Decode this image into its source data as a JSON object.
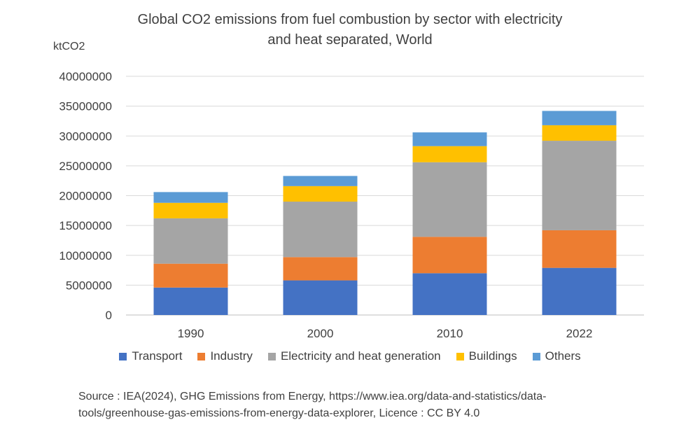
{
  "chart_data": {
    "type": "bar",
    "stacked": true,
    "title_lines": [
      "Global CO2 emissions from fuel combustion by sector with electricity",
      "and heat separated, World"
    ],
    "ylabel": "ktCO2",
    "xlabel": "",
    "ylim": [
      0,
      40000000
    ],
    "yticks": [
      "0",
      "5000000",
      "10000000",
      "15000000",
      "20000000",
      "25000000",
      "30000000",
      "35000000",
      "40000000"
    ],
    "grid": true,
    "legend_position": "bottom",
    "categories": [
      "1990",
      "2000",
      "2010",
      "2022"
    ],
    "series": [
      {
        "name": "Transport",
        "color": "#4472C4",
        "values": [
          4600000,
          5800000,
          7000000,
          7900000
        ]
      },
      {
        "name": "Industry",
        "color": "#ED7D31",
        "values": [
          4000000,
          3900000,
          6100000,
          6300000
        ]
      },
      {
        "name": "Electricity and heat generation",
        "color": "#A5A5A5",
        "values": [
          7600000,
          9300000,
          12500000,
          15000000
        ]
      },
      {
        "name": "Buildings",
        "color": "#FFC000",
        "values": [
          2600000,
          2600000,
          2700000,
          2600000
        ]
      },
      {
        "name": "Others",
        "color": "#5B9BD5",
        "values": [
          1800000,
          1700000,
          2300000,
          2400000
        ]
      }
    ]
  },
  "source_lines": [
    "Source : IEA(2024), GHG Emissions from Energy, https://www.iea.org/data-and-statistics/data-",
    "tools/greenhouse-gas-emissions-from-energy-data-explorer, Licence : CC BY 4.0"
  ]
}
